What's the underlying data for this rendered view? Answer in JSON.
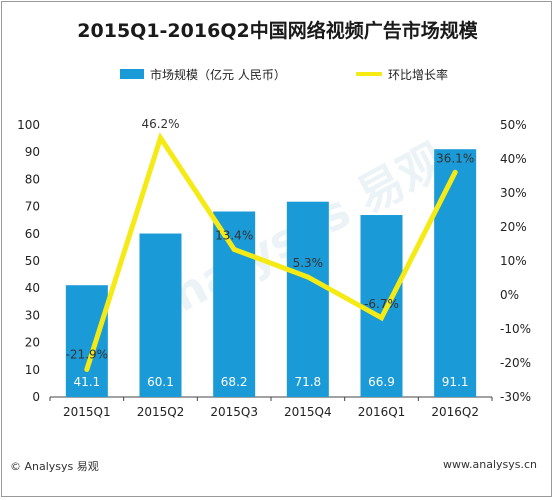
{
  "title": "2015Q1-2016Q2中国网络视频广告市场规模",
  "footer": {
    "source": "© Analysys 易观",
    "url": "www.analysys.cn"
  },
  "watermark": "Analysys 易观",
  "colors": {
    "bar": "#1a9ad6",
    "line": "#f5ea14",
    "label": "#ffffff"
  },
  "chart_data": {
    "type": "bar",
    "categories": [
      "2015Q1",
      "2015Q2",
      "2015Q3",
      "2015Q4",
      "2016Q1",
      "2016Q2"
    ],
    "series": [
      {
        "name": "市场规模（亿元 人民币）",
        "type": "bar",
        "axis": "left",
        "values": [
          41.1,
          60.1,
          68.2,
          71.8,
          66.9,
          91.1
        ],
        "labels": [
          "41.1",
          "60.1",
          "68.2",
          "71.8",
          "66.9",
          "91.1"
        ]
      },
      {
        "name": "环比增长率",
        "type": "line",
        "axis": "right",
        "values": [
          -21.9,
          46.2,
          13.4,
          5.3,
          -6.7,
          36.1
        ],
        "labels": [
          "-21.9%",
          "46.2%",
          "13.4%",
          "5.3%",
          "-6.7%",
          "36.1%"
        ]
      }
    ],
    "y_left": {
      "range": [
        0,
        100
      ],
      "ticks": [
        "0",
        "10",
        "20",
        "30",
        "40",
        "50",
        "60",
        "70",
        "80",
        "90",
        "100"
      ]
    },
    "y_right": {
      "range": [
        -30,
        50
      ],
      "ticks": [
        "-30%",
        "-20%",
        "-10%",
        "0%",
        "10%",
        "20%",
        "30%",
        "40%",
        "50%"
      ]
    },
    "legend_position": "top",
    "grid": false
  }
}
